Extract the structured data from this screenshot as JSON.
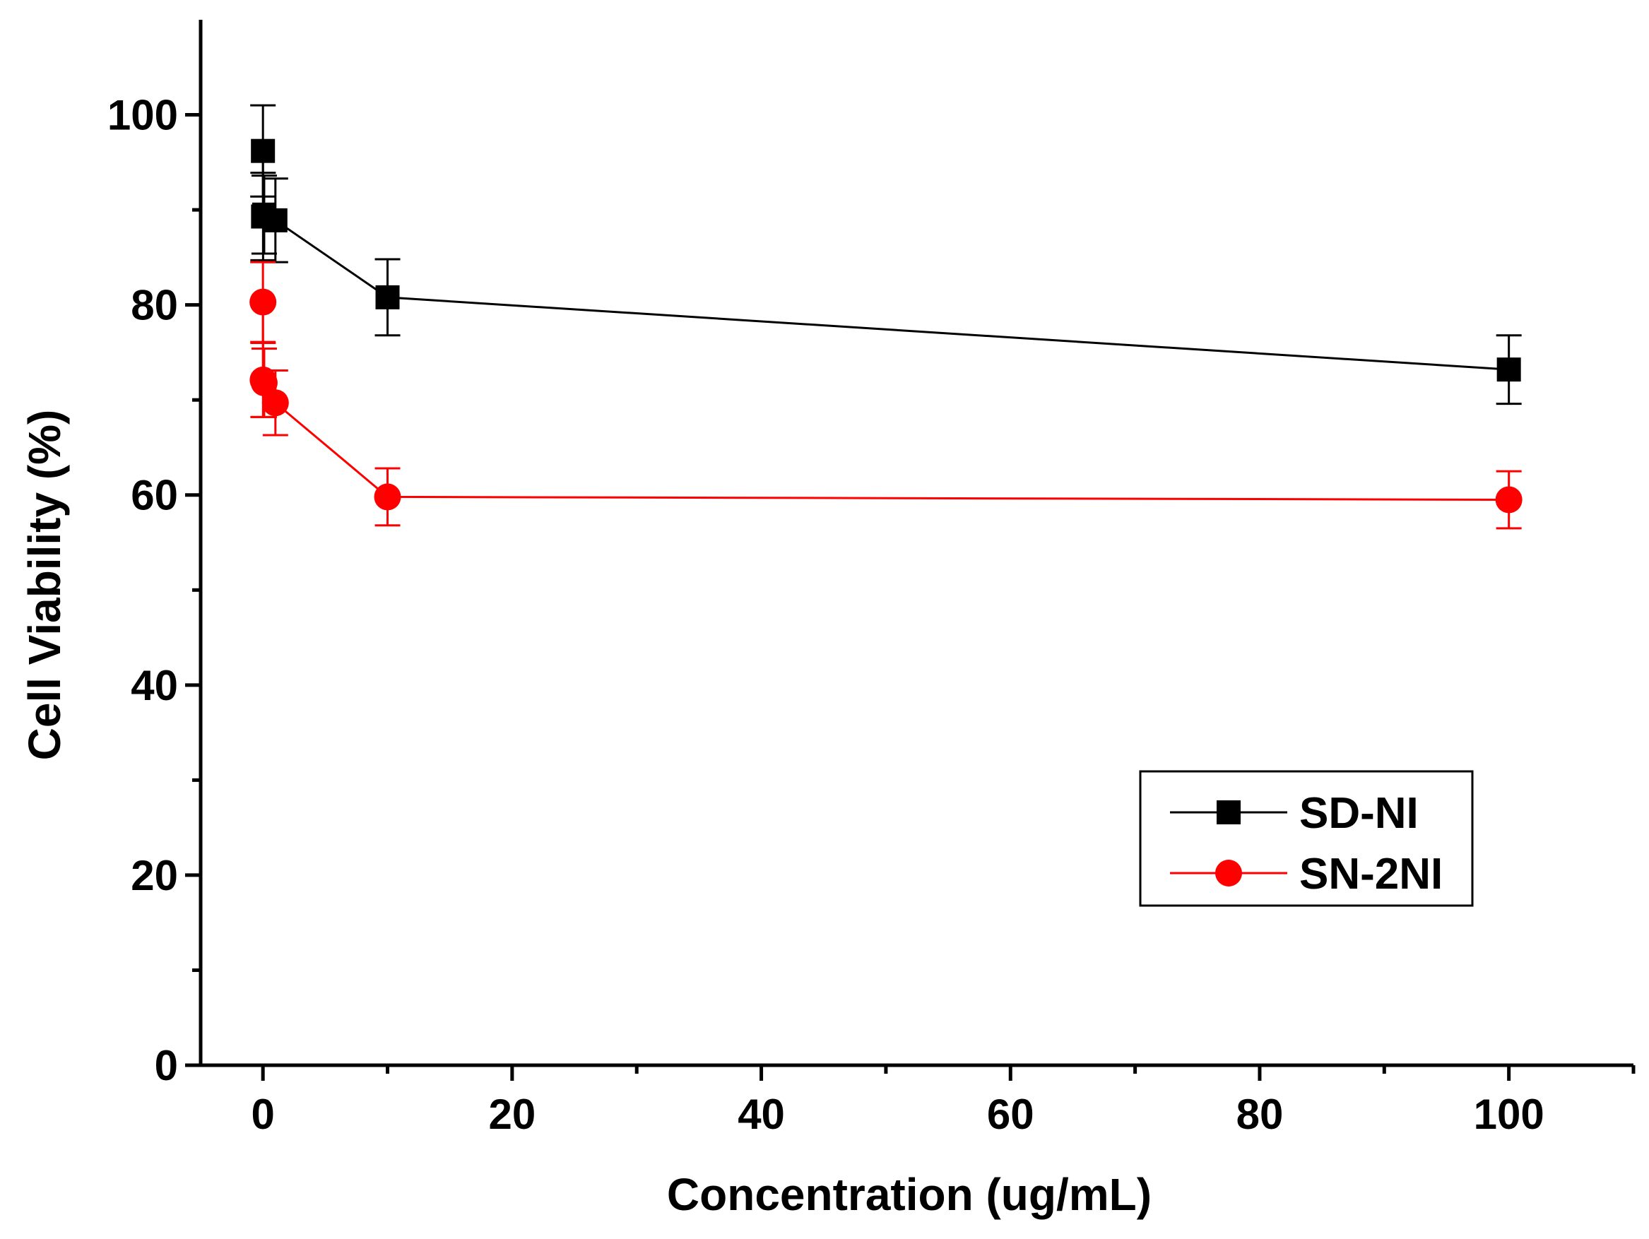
{
  "chart_data": {
    "type": "scatter",
    "title": "",
    "xlabel": "Concentration (ug/mL)",
    "ylabel": "Cell Viability (%)",
    "xlim": [
      -5,
      110
    ],
    "ylim": [
      0,
      110
    ],
    "x_ticks": [
      0,
      20,
      40,
      60,
      80,
      100
    ],
    "x_minor_ticks": [
      10,
      30,
      50,
      70,
      90,
      110
    ],
    "y_ticks": [
      0,
      20,
      40,
      60,
      80,
      100
    ],
    "y_minor_ticks": [
      10,
      30,
      50,
      70,
      90
    ],
    "x_tick_labels": [
      "0",
      "20",
      "40",
      "60",
      "80",
      "100"
    ],
    "y_tick_labels": [
      "0",
      "20",
      "40",
      "60",
      "80",
      "100"
    ],
    "grid": false,
    "legend_position": "bottom-right",
    "series": [
      {
        "name": "SD-NI",
        "color": "#000000",
        "marker": "square",
        "x": [
          0,
          0.01,
          0.1,
          1,
          10,
          100
        ],
        "y": [
          96.2,
          89.3,
          89.5,
          88.9,
          80.8,
          73.2
        ],
        "err": [
          4.8,
          4.6,
          4.1,
          4.4,
          4.0,
          3.6
        ]
      },
      {
        "name": "SN-2NI",
        "color": "#ff0000",
        "marker": "circle",
        "x": [
          0,
          0.01,
          0.1,
          1,
          10,
          100
        ],
        "y": [
          80.3,
          72.1,
          71.8,
          69.7,
          59.8,
          59.5
        ],
        "err": [
          4.2,
          3.9,
          3.6,
          3.4,
          3.0,
          3.0
        ]
      }
    ]
  }
}
